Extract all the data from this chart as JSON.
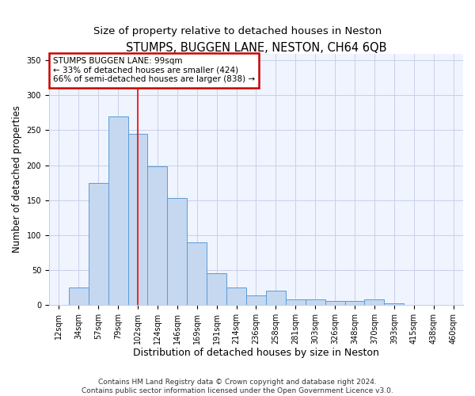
{
  "title": "STUMPS, BUGGEN LANE, NESTON, CH64 6QB",
  "subtitle": "Size of property relative to detached houses in Neston",
  "xlabel": "Distribution of detached houses by size in Neston",
  "ylabel": "Number of detached properties",
  "bar_labels": [
    "12sqm",
    "34sqm",
    "57sqm",
    "79sqm",
    "102sqm",
    "124sqm",
    "146sqm",
    "169sqm",
    "191sqm",
    "214sqm",
    "236sqm",
    "258sqm",
    "281sqm",
    "303sqm",
    "326sqm",
    "348sqm",
    "370sqm",
    "393sqm",
    "415sqm",
    "438sqm",
    "460sqm"
  ],
  "bar_heights": [
    0,
    25,
    175,
    270,
    245,
    198,
    153,
    90,
    45,
    25,
    14,
    20,
    8,
    8,
    5,
    5,
    8,
    2,
    0,
    0,
    0
  ],
  "bar_color": "#c5d8f0",
  "bar_edge_color": "#5b9bd5",
  "ylim": [
    0,
    360
  ],
  "yticks": [
    0,
    50,
    100,
    150,
    200,
    250,
    300,
    350
  ],
  "property_line_x": 4.0,
  "annotation_text": "STUMPS BUGGEN LANE: 99sqm\n← 33% of detached houses are smaller (424)\n66% of semi-detached houses are larger (838) →",
  "annotation_box_color": "white",
  "annotation_box_edge": "#cc0000",
  "footer1": "Contains HM Land Registry data © Crown copyright and database right 2024.",
  "footer2": "Contains public sector information licensed under the Open Government Licence v3.0.",
  "bg_color": "#ffffff",
  "plot_bg_color": "#f0f4ff",
  "grid_color": "#c8d0e8",
  "title_fontsize": 10.5,
  "subtitle_fontsize": 9.5,
  "ylabel_fontsize": 8.5,
  "xlabel_fontsize": 9,
  "tick_fontsize": 7,
  "footer_fontsize": 6.5,
  "annotation_fontsize": 7.5
}
